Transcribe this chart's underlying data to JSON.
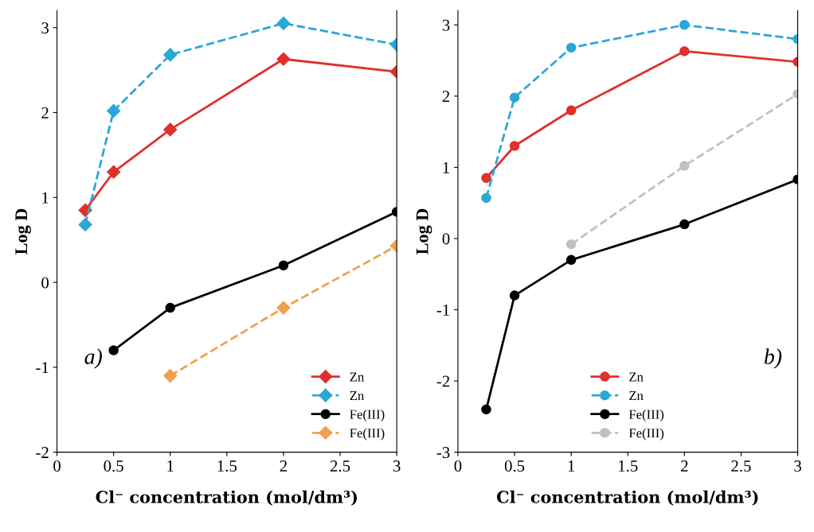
{
  "chart_data": [
    {
      "type": "line",
      "xlabel": "Cl⁻ concentration (mol/dm³)",
      "ylabel": "Log D",
      "annotations": [
        "a)"
      ],
      "xlim": [
        0,
        3
      ],
      "xticks": [
        0,
        0.5,
        1,
        1.5,
        2,
        2.5,
        3
      ],
      "ylim": [
        -2,
        3.2
      ],
      "yticks": [
        -2,
        -1,
        0,
        1,
        2,
        3
      ],
      "grid": false,
      "legend": "lower right",
      "series": [
        {
          "name": "Zn",
          "color": "#e0302a",
          "x": [
            0.25,
            0.5,
            1,
            2,
            3
          ],
          "values": [
            0.85,
            1.3,
            1.8,
            2.63,
            2.48
          ],
          "marker": "diamond",
          "line_style": "solid"
        },
        {
          "name": "Zn",
          "color": "#2aa7d8",
          "x": [
            0.25,
            0.5,
            1,
            2,
            3
          ],
          "values": [
            0.68,
            2.02,
            2.68,
            3.05,
            2.8
          ],
          "marker": "diamond",
          "line_style": "dashed"
        },
        {
          "name": "Fe(III)",
          "color": "#000000",
          "x": [
            0.5,
            1,
            2,
            3
          ],
          "values": [
            -0.8,
            -0.3,
            0.2,
            0.83
          ],
          "marker": "circle",
          "line_style": "solid"
        },
        {
          "name": "Fe(III)",
          "color": "#f0a050",
          "x": [
            1,
            2,
            3
          ],
          "values": [
            -1.1,
            -0.3,
            0.43
          ],
          "marker": "diamond",
          "line_style": "dashed"
        }
      ]
    },
    {
      "type": "line",
      "xlabel": "Cl⁻ concentration (mol/dm³)",
      "ylabel": "Log D",
      "annotations": [
        "b)"
      ],
      "xlim": [
        0,
        3
      ],
      "xticks": [
        0,
        0.5,
        1,
        1.5,
        2,
        2.5,
        3
      ],
      "ylim": [
        -3,
        3.2
      ],
      "yticks": [
        -3,
        -2,
        -1,
        0,
        1,
        2,
        3
      ],
      "grid": false,
      "legend": "lower center",
      "series": [
        {
          "name": "Zn",
          "color": "#e0302a",
          "x": [
            0.25,
            0.5,
            1,
            2,
            3
          ],
          "values": [
            0.85,
            1.3,
            1.8,
            2.63,
            2.48
          ],
          "marker": "circle",
          "line_style": "solid"
        },
        {
          "name": "Zn",
          "color": "#2aa7d8",
          "x": [
            0.25,
            0.5,
            1,
            2,
            3
          ],
          "values": [
            0.57,
            1.98,
            2.68,
            3.0,
            2.8
          ],
          "marker": "circle",
          "line_style": "dashed"
        },
        {
          "name": "Fe(III)",
          "color": "#000000",
          "x": [
            0.25,
            0.5,
            1,
            2,
            3
          ],
          "values": [
            -2.4,
            -0.8,
            -0.3,
            0.2,
            0.83
          ],
          "marker": "circle",
          "line_style": "solid"
        },
        {
          "name": "Fe(III)",
          "color": "#c0c0c0",
          "x": [
            1,
            2,
            3
          ],
          "values": [
            -0.08,
            1.02,
            2.03
          ],
          "marker": "circle",
          "line_style": "dashed"
        }
      ]
    }
  ]
}
